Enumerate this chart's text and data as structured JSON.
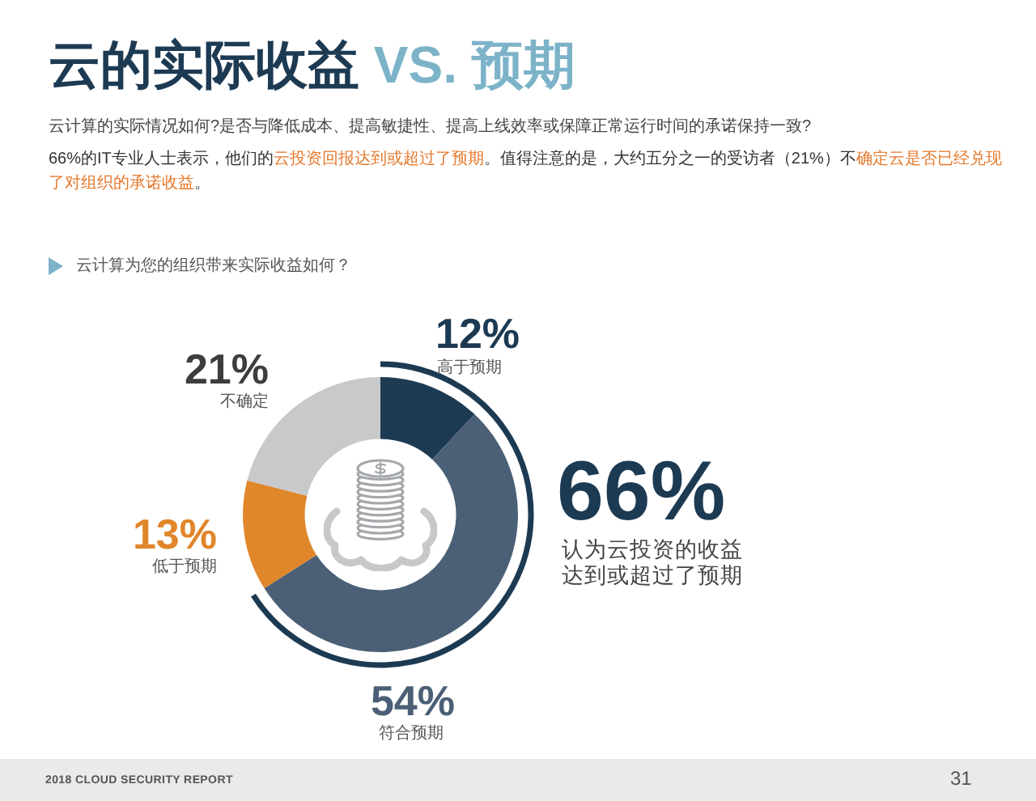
{
  "chart_data": {
    "type": "donut",
    "title": "云的实际收益 VS. 预期",
    "subtitle": "云计算的实际情况如何?是否与降低成本、提高敏捷性、提高上线效率或保障正常运行时间的承诺保持一致?",
    "categories": [
      "高于预期",
      "符合预期",
      "低于预期",
      "不确定"
    ],
    "values": [
      12,
      54,
      13,
      21
    ],
    "colors": [
      "#1d3a53",
      "#4b6076",
      "#e0862b",
      "#c8c9cb"
    ],
    "value_labels": [
      "12%",
      "54%",
      "13%",
      "21%"
    ],
    "annotations": [
      "66%的IT专业人士表示，他们的",
      "云投资回报达到或超过了预期",
      "。值得注意的是，大约五分之一的受访者（21%）不",
      "确定云是否已经兑现了对组织的承诺收益",
      "。",
      "云计算为您的组织带来实际收益如何？",
      "66%",
      "认为云投资的收益达到或超过了预期",
      "2018 CLOUD SECURITY REPORT",
      "31"
    ]
  }
}
